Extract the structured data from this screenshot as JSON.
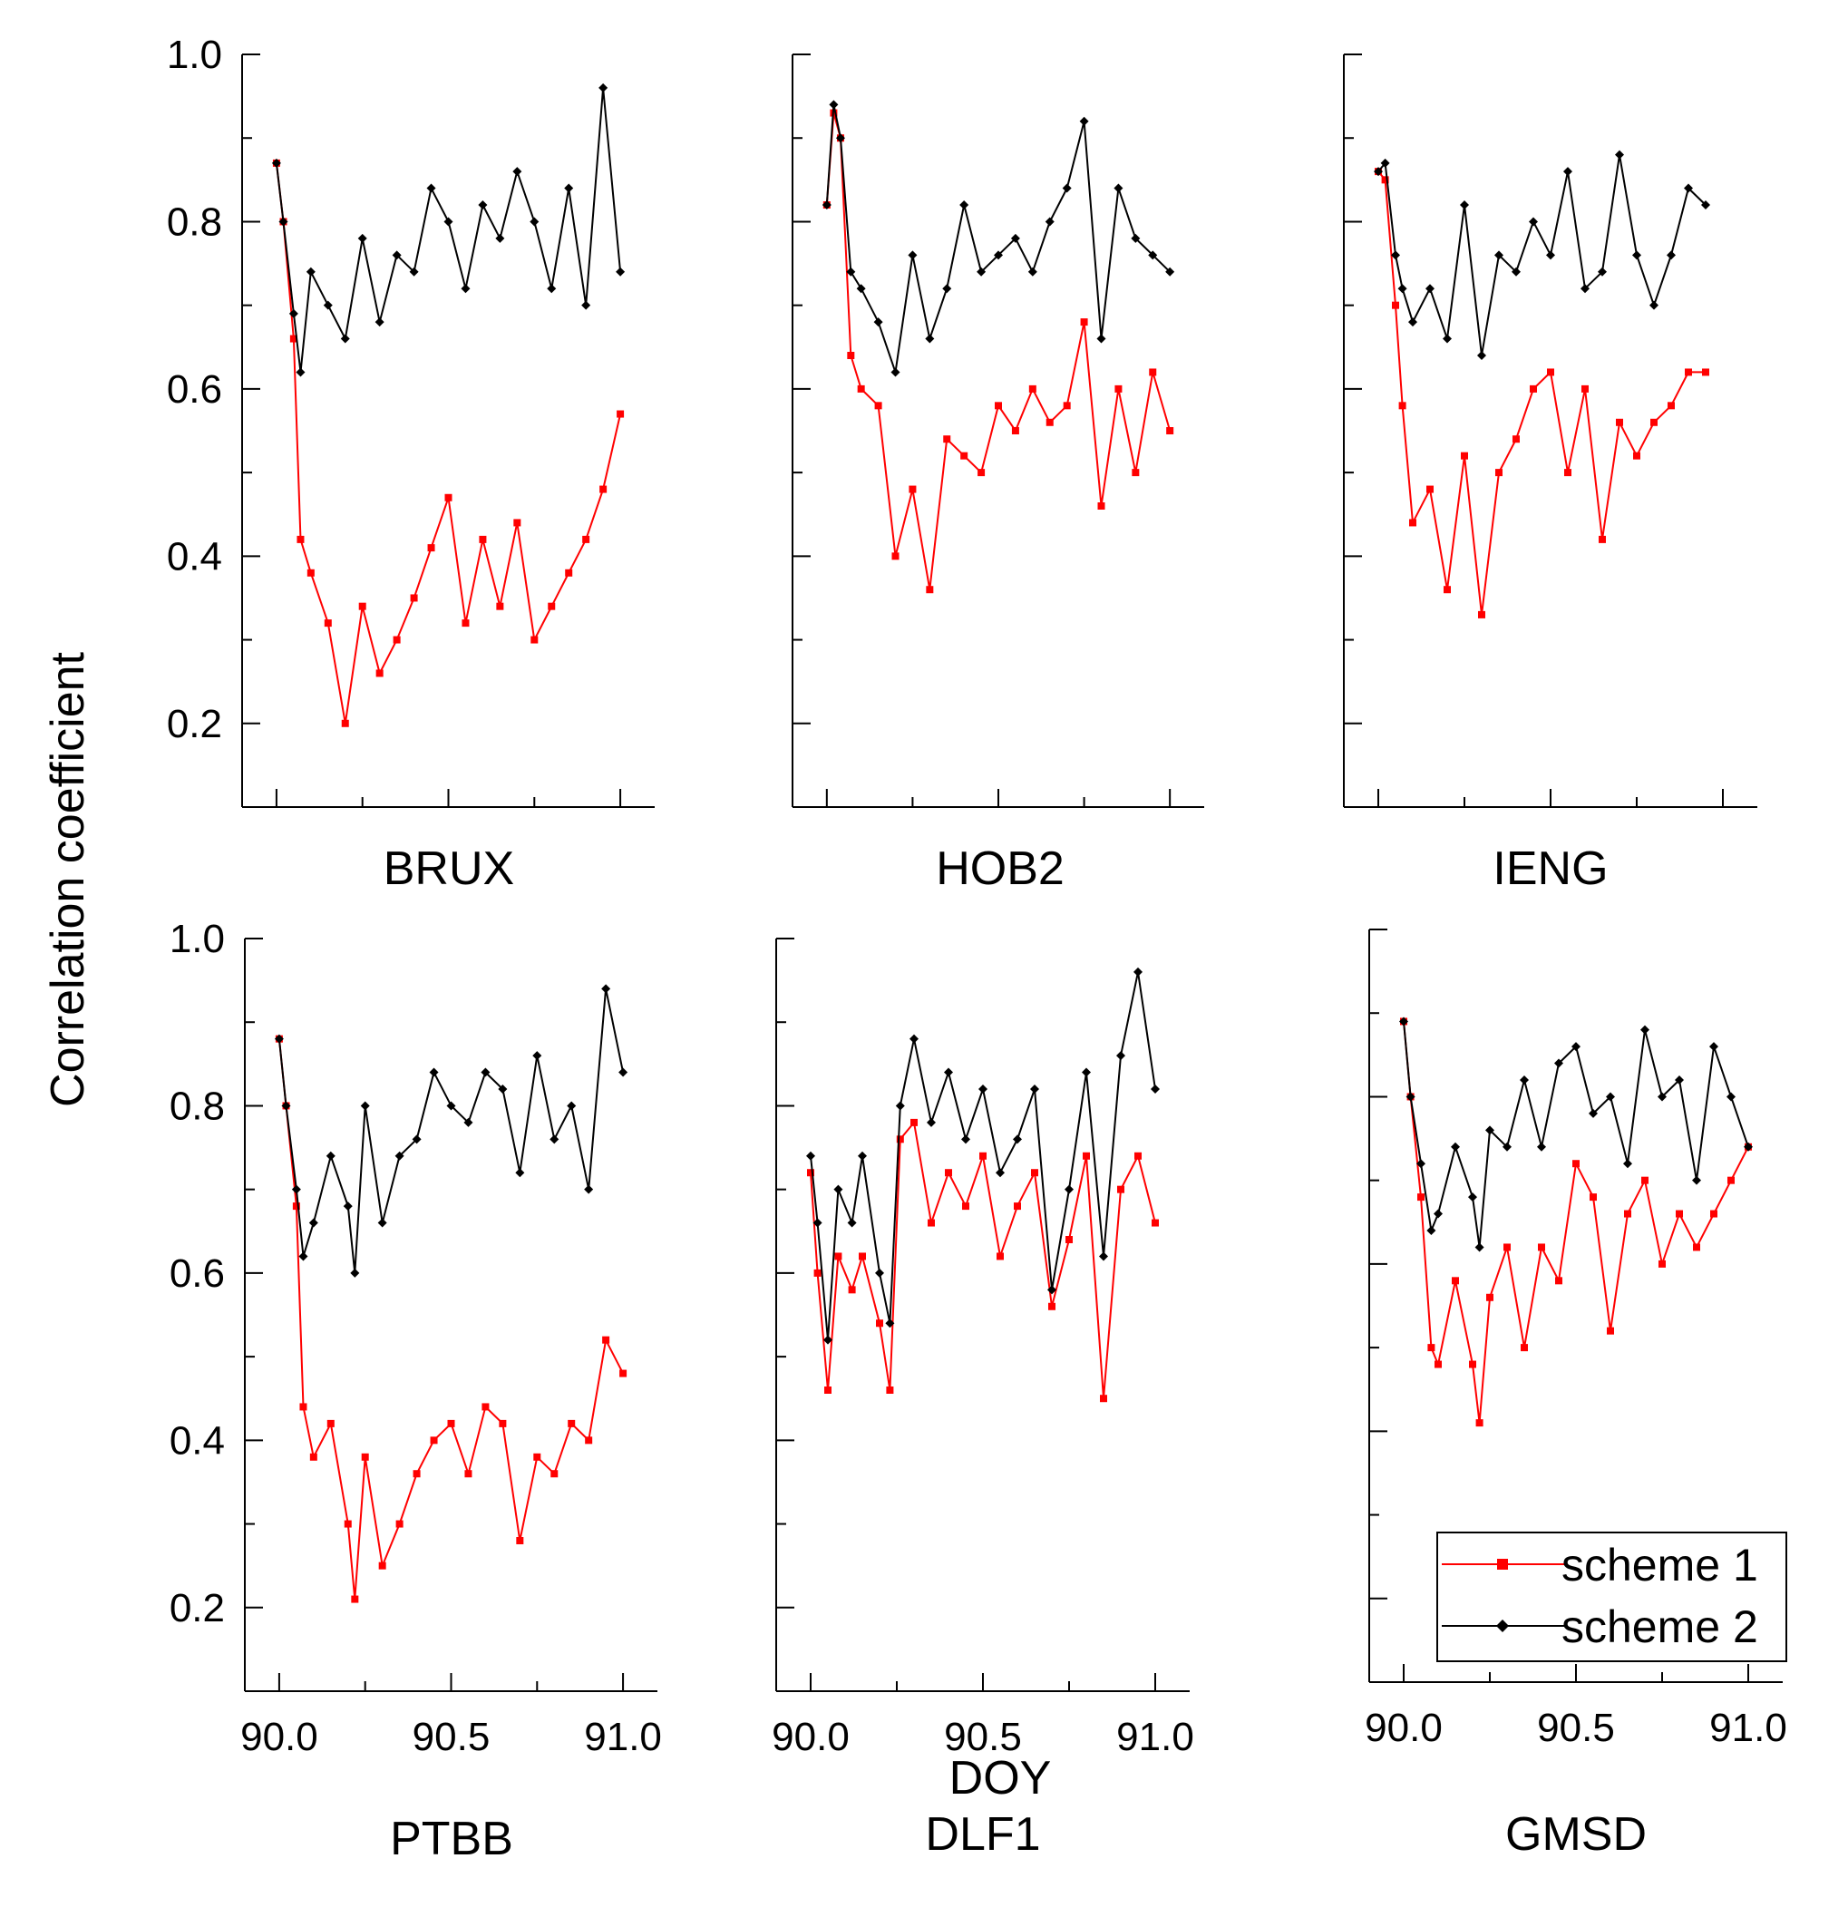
{
  "figure": {
    "ylabel": "Correlation coefficient",
    "xlabel": "DOY"
  },
  "legend": {
    "items": [
      {
        "label": "scheme 1",
        "color": "#ff0000",
        "marker": "square"
      },
      {
        "label": "scheme 2",
        "color": "#000000",
        "marker": "diamond"
      }
    ],
    "placement": "bottom-right of GMSD panel"
  },
  "chart_data": [
    {
      "type": "line",
      "title": "BRUX",
      "xlim": [
        89.9,
        91.1
      ],
      "ylim": [
        0.1,
        1.0
      ],
      "yticks": [
        "0.2",
        "0.4",
        "0.6",
        "0.8",
        "1.0"
      ],
      "xticks": [],
      "series": [
        {
          "name": "scheme 1",
          "color": "#ff0000",
          "x": [
            90.0,
            90.02,
            90.05,
            90.07,
            90.1,
            90.15,
            90.2,
            90.25,
            90.3,
            90.35,
            90.4,
            90.45,
            90.5,
            90.55,
            90.6,
            90.65,
            90.7,
            90.75,
            90.8,
            90.85,
            90.9,
            90.95,
            91.0
          ],
          "y": [
            0.87,
            0.8,
            0.66,
            0.42,
            0.38,
            0.32,
            0.2,
            0.34,
            0.26,
            0.3,
            0.35,
            0.41,
            0.47,
            0.32,
            0.42,
            0.34,
            0.44,
            0.3,
            0.34,
            0.38,
            0.42,
            0.48,
            0.57
          ]
        },
        {
          "name": "scheme 2",
          "color": "#000000",
          "x": [
            90.0,
            90.02,
            90.05,
            90.07,
            90.1,
            90.15,
            90.2,
            90.25,
            90.3,
            90.35,
            90.4,
            90.45,
            90.5,
            90.55,
            90.6,
            90.65,
            90.7,
            90.75,
            90.8,
            90.85,
            90.9,
            90.95,
            91.0
          ],
          "y": [
            0.87,
            0.8,
            0.69,
            0.62,
            0.74,
            0.7,
            0.66,
            0.78,
            0.68,
            0.76,
            0.74,
            0.84,
            0.8,
            0.72,
            0.82,
            0.78,
            0.86,
            0.8,
            0.72,
            0.84,
            0.7,
            0.96,
            0.74
          ]
        }
      ]
    },
    {
      "type": "line",
      "title": "HOB2",
      "xlim": [
        89.9,
        91.1
      ],
      "ylim": [
        0.1,
        1.0
      ],
      "yticks": [],
      "xticks": [],
      "series": [
        {
          "name": "scheme 1",
          "color": "#ff0000",
          "x": [
            90.0,
            90.02,
            90.04,
            90.07,
            90.1,
            90.15,
            90.2,
            90.25,
            90.3,
            90.35,
            90.4,
            90.45,
            90.5,
            90.55,
            90.6,
            90.65,
            90.7,
            90.75,
            90.8,
            90.85,
            90.9,
            90.95,
            91.0
          ],
          "y": [
            0.82,
            0.93,
            0.9,
            0.64,
            0.6,
            0.58,
            0.4,
            0.48,
            0.36,
            0.54,
            0.52,
            0.5,
            0.58,
            0.55,
            0.6,
            0.56,
            0.58,
            0.68,
            0.46,
            0.6,
            0.5,
            0.62,
            0.55
          ]
        },
        {
          "name": "scheme 2",
          "color": "#000000",
          "x": [
            90.0,
            90.02,
            90.04,
            90.07,
            90.1,
            90.15,
            90.2,
            90.25,
            90.3,
            90.35,
            90.4,
            90.45,
            90.5,
            90.55,
            90.6,
            90.65,
            90.7,
            90.75,
            90.8,
            90.85,
            90.9,
            90.95,
            91.0
          ],
          "y": [
            0.82,
            0.94,
            0.9,
            0.74,
            0.72,
            0.68,
            0.62,
            0.76,
            0.66,
            0.72,
            0.82,
            0.74,
            0.76,
            0.78,
            0.74,
            0.8,
            0.84,
            0.92,
            0.66,
            0.84,
            0.78,
            0.76,
            0.74
          ]
        }
      ]
    },
    {
      "type": "line",
      "title": "IENG",
      "xlim": [
        89.9,
        91.1
      ],
      "ylim": [
        0.1,
        1.0
      ],
      "yticks": [],
      "xticks": [],
      "series": [
        {
          "name": "scheme 1",
          "color": "#ff0000",
          "x": [
            90.0,
            90.02,
            90.05,
            90.07,
            90.1,
            90.15,
            90.2,
            90.25,
            90.3,
            90.35,
            90.4,
            90.45,
            90.5,
            90.55,
            90.6,
            90.65,
            90.7,
            90.75,
            90.8,
            90.85,
            90.9,
            90.95
          ],
          "y": [
            0.86,
            0.85,
            0.7,
            0.58,
            0.44,
            0.48,
            0.36,
            0.52,
            0.33,
            0.5,
            0.54,
            0.6,
            0.62,
            0.5,
            0.6,
            0.42,
            0.56,
            0.52,
            0.56,
            0.58,
            0.62,
            0.62
          ]
        },
        {
          "name": "scheme 2",
          "color": "#000000",
          "x": [
            90.0,
            90.02,
            90.05,
            90.07,
            90.1,
            90.15,
            90.2,
            90.25,
            90.3,
            90.35,
            90.4,
            90.45,
            90.5,
            90.55,
            90.6,
            90.65,
            90.7,
            90.75,
            90.8,
            90.85,
            90.9,
            90.95
          ],
          "y": [
            0.86,
            0.87,
            0.76,
            0.72,
            0.68,
            0.72,
            0.66,
            0.82,
            0.64,
            0.76,
            0.74,
            0.8,
            0.76,
            0.86,
            0.72,
            0.74,
            0.88,
            0.76,
            0.7,
            0.76,
            0.84,
            0.82
          ]
        }
      ]
    },
    {
      "type": "line",
      "title": "PTBB",
      "xlim": [
        89.9,
        91.1
      ],
      "ylim": [
        0.1,
        1.0
      ],
      "yticks": [
        "0.2",
        "0.4",
        "0.6",
        "0.8",
        "1.0"
      ],
      "xticks": [
        "90.0",
        "90.5",
        "91.0"
      ],
      "series": [
        {
          "name": "scheme 1",
          "color": "#ff0000",
          "x": [
            90.0,
            90.02,
            90.05,
            90.07,
            90.1,
            90.15,
            90.2,
            90.22,
            90.25,
            90.3,
            90.35,
            90.4,
            90.45,
            90.5,
            90.55,
            90.6,
            90.65,
            90.7,
            90.75,
            90.8,
            90.85,
            90.9,
            90.95,
            91.0
          ],
          "y": [
            0.88,
            0.8,
            0.68,
            0.44,
            0.38,
            0.42,
            0.3,
            0.21,
            0.38,
            0.25,
            0.3,
            0.36,
            0.4,
            0.42,
            0.36,
            0.44,
            0.42,
            0.28,
            0.38,
            0.36,
            0.42,
            0.4,
            0.52,
            0.48
          ]
        },
        {
          "name": "scheme 2",
          "color": "#000000",
          "x": [
            90.0,
            90.02,
            90.05,
            90.07,
            90.1,
            90.15,
            90.2,
            90.22,
            90.25,
            90.3,
            90.35,
            90.4,
            90.45,
            90.5,
            90.55,
            90.6,
            90.65,
            90.7,
            90.75,
            90.8,
            90.85,
            90.9,
            90.95,
            91.0
          ],
          "y": [
            0.88,
            0.8,
            0.7,
            0.62,
            0.66,
            0.74,
            0.68,
            0.6,
            0.8,
            0.66,
            0.74,
            0.76,
            0.84,
            0.8,
            0.78,
            0.84,
            0.82,
            0.72,
            0.86,
            0.76,
            0.8,
            0.7,
            0.94,
            0.84
          ]
        }
      ]
    },
    {
      "type": "line",
      "title": "DLF1",
      "xlim": [
        89.9,
        91.1
      ],
      "ylim": [
        0.1,
        1.0
      ],
      "yticks": [],
      "xticks": [
        "90.0",
        "90.5",
        "91.0"
      ],
      "series": [
        {
          "name": "scheme 1",
          "color": "#ff0000",
          "x": [
            90.0,
            90.02,
            90.05,
            90.08,
            90.12,
            90.15,
            90.2,
            90.23,
            90.26,
            90.3,
            90.35,
            90.4,
            90.45,
            90.5,
            90.55,
            90.6,
            90.65,
            90.7,
            90.75,
            90.8,
            90.85,
            90.9,
            90.95,
            91.0
          ],
          "y": [
            0.72,
            0.6,
            0.46,
            0.62,
            0.58,
            0.62,
            0.54,
            0.46,
            0.76,
            0.78,
            0.66,
            0.72,
            0.68,
            0.74,
            0.62,
            0.68,
            0.72,
            0.56,
            0.64,
            0.74,
            0.45,
            0.7,
            0.74,
            0.66
          ]
        },
        {
          "name": "scheme 2",
          "color": "#000000",
          "x": [
            90.0,
            90.02,
            90.05,
            90.08,
            90.12,
            90.15,
            90.2,
            90.23,
            90.26,
            90.3,
            90.35,
            90.4,
            90.45,
            90.5,
            90.55,
            90.6,
            90.65,
            90.7,
            90.75,
            90.8,
            90.85,
            90.9,
            90.95,
            91.0
          ],
          "y": [
            0.74,
            0.66,
            0.52,
            0.7,
            0.66,
            0.74,
            0.6,
            0.54,
            0.8,
            0.88,
            0.78,
            0.84,
            0.76,
            0.82,
            0.72,
            0.76,
            0.82,
            0.58,
            0.7,
            0.84,
            0.62,
            0.86,
            0.96,
            0.82
          ]
        }
      ]
    },
    {
      "type": "line",
      "title": "GMSD",
      "xlim": [
        89.9,
        91.1
      ],
      "ylim": [
        0.1,
        1.0
      ],
      "yticks": [],
      "xticks": [
        "90.0",
        "90.5",
        "91.0"
      ],
      "series": [
        {
          "name": "scheme 1",
          "color": "#ff0000",
          "x": [
            90.0,
            90.02,
            90.05,
            90.08,
            90.1,
            90.15,
            90.2,
            90.22,
            90.25,
            90.3,
            90.35,
            90.4,
            90.45,
            90.5,
            90.55,
            90.6,
            90.65,
            90.7,
            90.75,
            90.8,
            90.85,
            90.9,
            90.95,
            91.0
          ],
          "y": [
            0.89,
            0.8,
            0.68,
            0.5,
            0.48,
            0.58,
            0.48,
            0.41,
            0.56,
            0.62,
            0.5,
            0.62,
            0.58,
            0.72,
            0.68,
            0.52,
            0.66,
            0.7,
            0.6,
            0.66,
            0.62,
            0.66,
            0.7,
            0.74
          ]
        },
        {
          "name": "scheme 2",
          "color": "#000000",
          "x": [
            90.0,
            90.02,
            90.05,
            90.08,
            90.1,
            90.15,
            90.2,
            90.22,
            90.25,
            90.3,
            90.35,
            90.4,
            90.45,
            90.5,
            90.55,
            90.6,
            90.65,
            90.7,
            90.75,
            90.8,
            90.85,
            90.9,
            90.95,
            91.0
          ],
          "y": [
            0.89,
            0.8,
            0.72,
            0.64,
            0.66,
            0.74,
            0.68,
            0.62,
            0.76,
            0.74,
            0.82,
            0.74,
            0.84,
            0.86,
            0.78,
            0.8,
            0.72,
            0.88,
            0.8,
            0.82,
            0.7,
            0.86,
            0.8,
            0.74
          ]
        }
      ]
    }
  ]
}
